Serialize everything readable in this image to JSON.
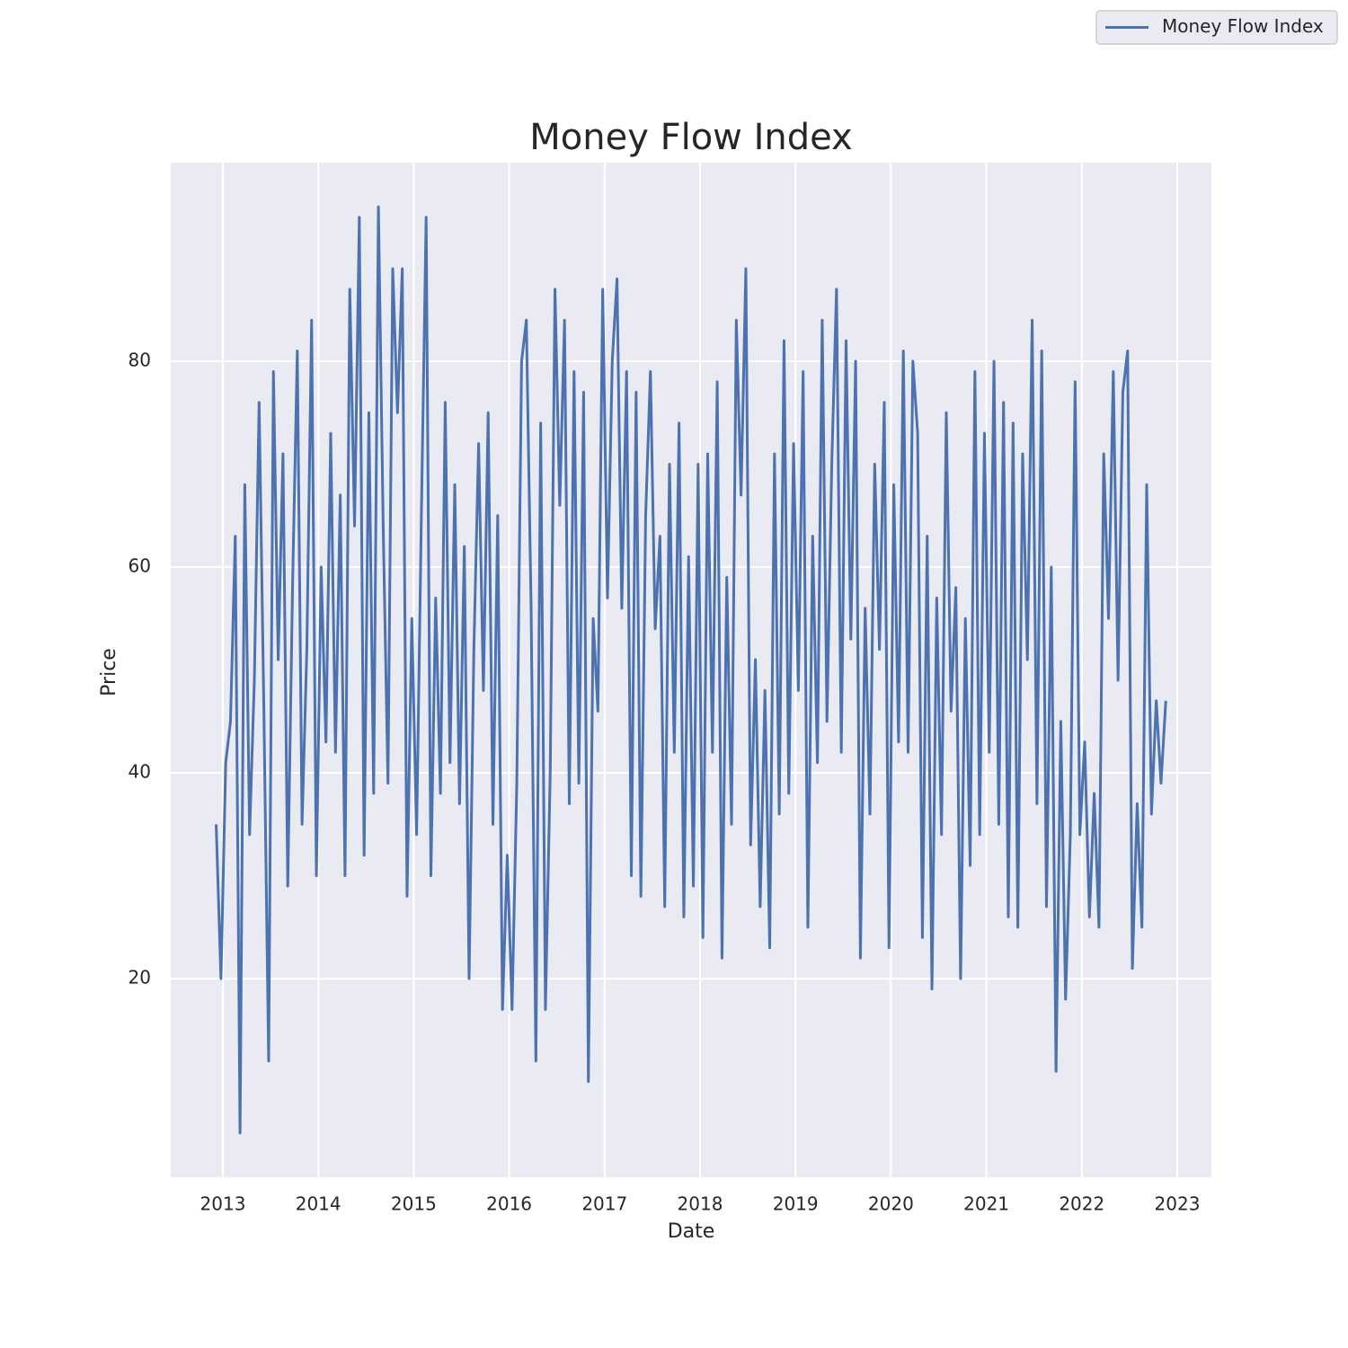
{
  "chart_data": {
    "type": "line",
    "title": "Money Flow Index",
    "xlabel": "Date",
    "ylabel": "Price",
    "x": [
      2012.93,
      2012.98,
      2013.03,
      2013.08,
      2013.13,
      2013.18,
      2013.23,
      2013.28,
      2013.33,
      2013.38,
      2013.43,
      2013.48,
      2013.53,
      2013.58,
      2013.63,
      2013.68,
      2013.73,
      2013.78,
      2013.83,
      2013.88,
      2013.93,
      2013.98,
      2014.03,
      2014.08,
      2014.13,
      2014.18,
      2014.23,
      2014.28,
      2014.33,
      2014.38,
      2014.43,
      2014.48,
      2014.53,
      2014.58,
      2014.63,
      2014.68,
      2014.73,
      2014.78,
      2014.83,
      2014.88,
      2014.93,
      2014.98,
      2015.03,
      2015.08,
      2015.13,
      2015.18,
      2015.23,
      2015.28,
      2015.33,
      2015.38,
      2015.43,
      2015.48,
      2015.53,
      2015.58,
      2015.63,
      2015.68,
      2015.73,
      2015.78,
      2015.83,
      2015.88,
      2015.93,
      2015.98,
      2016.03,
      2016.08,
      2016.13,
      2016.18,
      2016.23,
      2016.28,
      2016.33,
      2016.38,
      2016.43,
      2016.48,
      2016.53,
      2016.58,
      2016.63,
      2016.68,
      2016.73,
      2016.78,
      2016.83,
      2016.88,
      2016.93,
      2016.98,
      2017.03,
      2017.08,
      2017.13,
      2017.18,
      2017.23,
      2017.28,
      2017.33,
      2017.38,
      2017.43,
      2017.48,
      2017.53,
      2017.58,
      2017.63,
      2017.68,
      2017.73,
      2017.78,
      2017.83,
      2017.88,
      2017.93,
      2017.98,
      2018.03,
      2018.08,
      2018.13,
      2018.18,
      2018.23,
      2018.28,
      2018.33,
      2018.38,
      2018.43,
      2018.48,
      2018.53,
      2018.58,
      2018.63,
      2018.68,
      2018.73,
      2018.78,
      2018.83,
      2018.88,
      2018.93,
      2018.98,
      2019.03,
      2019.08,
      2019.13,
      2019.18,
      2019.23,
      2019.28,
      2019.33,
      2019.38,
      2019.43,
      2019.48,
      2019.53,
      2019.58,
      2019.63,
      2019.68,
      2019.73,
      2019.78,
      2019.83,
      2019.88,
      2019.93,
      2019.98,
      2020.03,
      2020.08,
      2020.13,
      2020.18,
      2020.23,
      2020.28,
      2020.33,
      2020.38,
      2020.43,
      2020.48,
      2020.53,
      2020.58,
      2020.63,
      2020.68,
      2020.73,
      2020.78,
      2020.83,
      2020.88,
      2020.93,
      2020.98,
      2021.03,
      2021.08,
      2021.13,
      2021.18,
      2021.23,
      2021.28,
      2021.33,
      2021.38,
      2021.43,
      2021.48,
      2021.53,
      2021.58,
      2021.63,
      2021.68,
      2021.73,
      2021.78,
      2021.83,
      2021.88,
      2021.93,
      2021.98,
      2022.03,
      2022.08,
      2022.13,
      2022.18,
      2022.23,
      2022.28,
      2022.33,
      2022.38,
      2022.43,
      2022.48,
      2022.53,
      2022.58,
      2022.63,
      2022.68,
      2022.73,
      2022.78,
      2022.83,
      2022.88
    ],
    "series": [
      {
        "name": "Money Flow Index",
        "color": "#4c72b0",
        "values": [
          35,
          20,
          41,
          45,
          63,
          5,
          68,
          34,
          49,
          76,
          46,
          12,
          79,
          51,
          71,
          29,
          58,
          81,
          35,
          52,
          84,
          30,
          60,
          43,
          73,
          42,
          67,
          30,
          87,
          64,
          94,
          32,
          75,
          38,
          95,
          64,
          39,
          89,
          75,
          89,
          28,
          55,
          34,
          65,
          94,
          30,
          57,
          38,
          76,
          41,
          68,
          37,
          62,
          20,
          52,
          72,
          48,
          75,
          35,
          65,
          17,
          32,
          17,
          39,
          80,
          84,
          56,
          12,
          74,
          17,
          40,
          87,
          66,
          84,
          37,
          79,
          39,
          77,
          10,
          55,
          46,
          87,
          57,
          80,
          88,
          56,
          79,
          30,
          77,
          28,
          65,
          79,
          54,
          63,
          27,
          70,
          42,
          74,
          26,
          61,
          29,
          70,
          24,
          71,
          42,
          78,
          22,
          59,
          35,
          84,
          67,
          89,
          33,
          51,
          27,
          48,
          23,
          71,
          36,
          82,
          38,
          72,
          48,
          79,
          25,
          63,
          41,
          84,
          45,
          70,
          87,
          42,
          82,
          53,
          80,
          22,
          56,
          36,
          70,
          52,
          76,
          23,
          68,
          43,
          81,
          42,
          80,
          73,
          24,
          63,
          19,
          57,
          34,
          75,
          46,
          58,
          20,
          55,
          31,
          79,
          34,
          73,
          42,
          80,
          35,
          76,
          26,
          74,
          25,
          71,
          51,
          84,
          37,
          81,
          27,
          60,
          11,
          45,
          18,
          34,
          78,
          34,
          43,
          26,
          38,
          25,
          71,
          55,
          79,
          49,
          77,
          81,
          21,
          37,
          25,
          68,
          36,
          47,
          39,
          47
        ]
      }
    ],
    "xlim": [
      2012.454,
      2023.358
    ],
    "ylim": [
      0.7,
      99.3
    ],
    "xticks": [
      2013,
      2014,
      2015,
      2016,
      2017,
      2018,
      2019,
      2020,
      2021,
      2022,
      2023
    ],
    "yticks": [
      20,
      40,
      60,
      80
    ],
    "grid": true,
    "legend": "upper right"
  }
}
